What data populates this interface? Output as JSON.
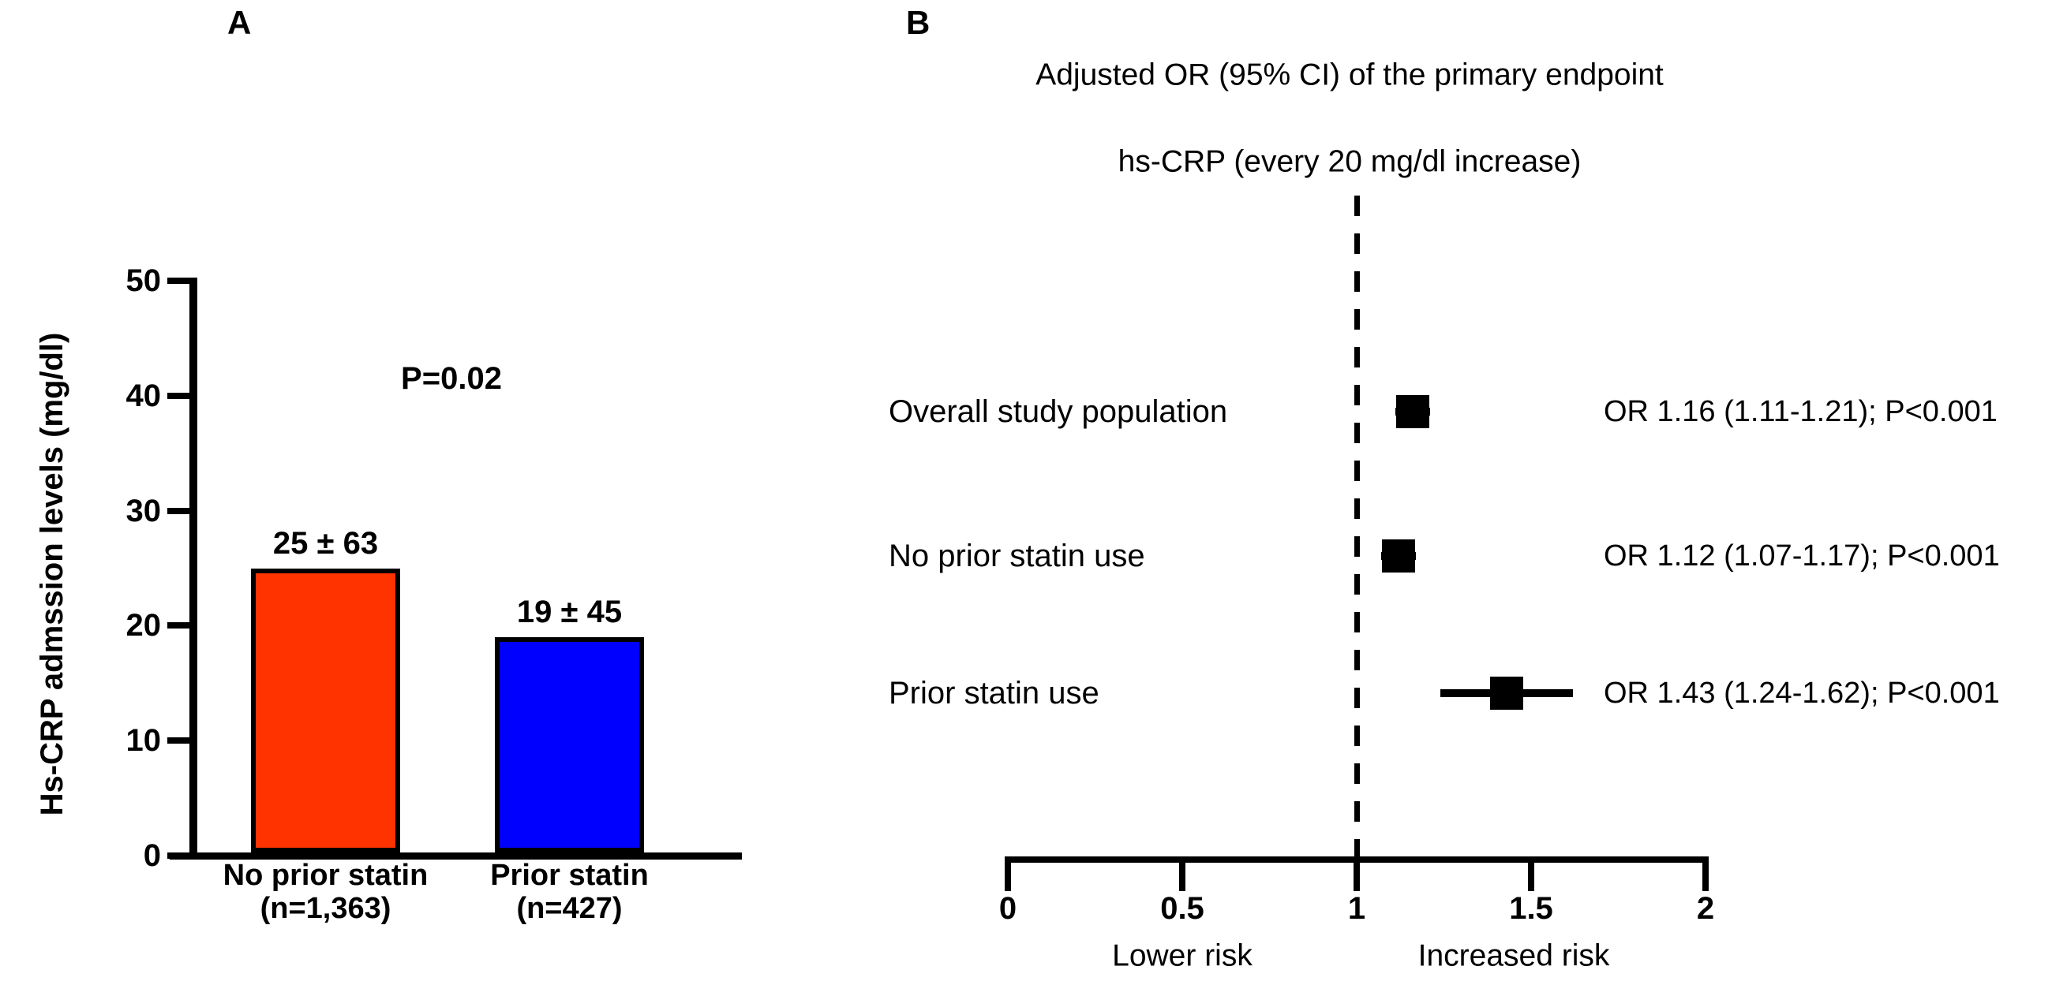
{
  "figure_colors": {
    "bar_no_prior_statin": "#ff3300",
    "bar_prior_statin": "#0000ff",
    "axis_and_markers": "#000000",
    "background": "#ffffff"
  },
  "chart_data": [
    {
      "type": "bar",
      "panel_label": "A",
      "ylabel": "Hs-CRP admssion levels (mg/dl)",
      "ylim": [
        0,
        50
      ],
      "yticks": [
        0,
        10,
        20,
        30,
        40,
        50
      ],
      "ytick_labels": [
        "0",
        "10",
        "20",
        "30",
        "40",
        "50"
      ],
      "categories": [
        "No prior statin",
        "Prior statin"
      ],
      "category_sublabels": [
        "(n=1,363)",
        "(n=427)"
      ],
      "values": [
        25,
        19
      ],
      "value_labels": [
        "25 ± 63",
        "19 ± 45"
      ],
      "bar_colors": [
        "#ff3300",
        "#0000ff"
      ],
      "annotation": "P=0.02",
      "grid": false,
      "legend": false
    },
    {
      "type": "forest",
      "panel_label": "B",
      "title": "Adjusted OR (95% CI) of the primary endpoint",
      "subtitle": "hs-CRP (every 20 mg/dl increase)",
      "rows": [
        {
          "label": "Overall study population",
          "or": 1.16,
          "ci_low": 1.11,
          "ci_high": 1.21,
          "annotation": "OR 1.16 (1.11-1.21); P<0.001"
        },
        {
          "label": "No prior statin use",
          "or": 1.12,
          "ci_low": 1.07,
          "ci_high": 1.17,
          "annotation": "OR 1.12 (1.07-1.17); P<0.001"
        },
        {
          "label": "Prior statin use",
          "or": 1.43,
          "ci_low": 1.24,
          "ci_high": 1.62,
          "annotation": "OR 1.43 (1.24-1.62); P<0.001"
        }
      ],
      "xlim": [
        0,
        2
      ],
      "xticks": [
        0,
        0.5,
        1,
        1.5,
        2
      ],
      "xtick_labels": [
        "0",
        "0.5",
        "1",
        "1.5",
        "2"
      ],
      "ref_line": 1,
      "xlabel_left": "Lower risk",
      "xlabel_right": "Increased risk",
      "marker_color": "#000000",
      "grid": false,
      "legend": false
    }
  ]
}
